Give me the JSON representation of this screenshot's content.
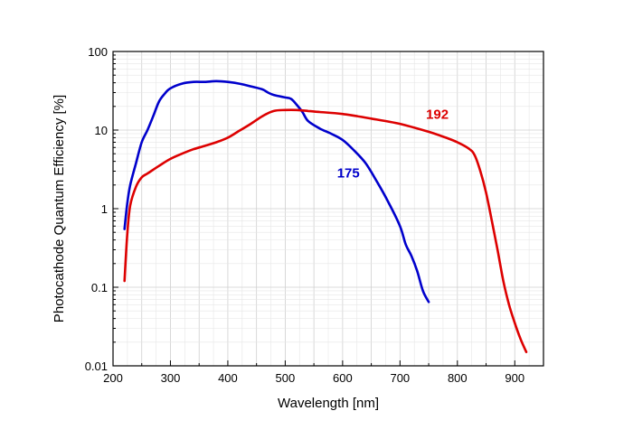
{
  "chart_data": {
    "type": "line",
    "xlabel": "Wavelength [nm]",
    "ylabel": "Photocathode Quantum Efficiency [%]",
    "xlim": [
      200,
      950
    ],
    "ylim": [
      0.01,
      100
    ],
    "yscale": "log",
    "grid": true,
    "x_ticks": [
      200,
      300,
      400,
      500,
      600,
      700,
      800,
      900
    ],
    "y_ticks": [
      0.01,
      0.1,
      1,
      10,
      100
    ],
    "x_tick_labels": [
      "200",
      "300",
      "400",
      "500",
      "600",
      "700",
      "800",
      "900"
    ],
    "y_tick_labels": [
      "0.01",
      "0.1",
      "1",
      "10",
      "100"
    ],
    "series": [
      {
        "name": "175",
        "color": "#0000cc",
        "label_at": [
          610,
          2.5
        ],
        "x": [
          220,
          225,
          230,
          240,
          250,
          260,
          270,
          280,
          290,
          300,
          320,
          340,
          360,
          380,
          400,
          420,
          440,
          460,
          470,
          480,
          500,
          510,
          520,
          530,
          540,
          560,
          580,
          600,
          620,
          640,
          660,
          680,
          700,
          710,
          720,
          730,
          740,
          750
        ],
        "y": [
          0.55,
          1.2,
          2.0,
          3.8,
          7.0,
          10.0,
          15.0,
          23.0,
          29.0,
          34.0,
          39.0,
          41.0,
          41.0,
          42.0,
          41.0,
          39.0,
          36.0,
          33.0,
          30.0,
          28.0,
          26.0,
          25.0,
          21.0,
          17.0,
          13.0,
          10.5,
          9.0,
          7.5,
          5.5,
          3.8,
          2.2,
          1.2,
          0.6,
          0.35,
          0.25,
          0.16,
          0.09,
          0.065
        ]
      },
      {
        "name": "192",
        "color": "#dd0000",
        "label_at": [
          765,
          14
        ],
        "x": [
          220,
          225,
          230,
          240,
          250,
          260,
          280,
          300,
          320,
          340,
          360,
          380,
          400,
          420,
          440,
          460,
          480,
          500,
          520,
          540,
          560,
          600,
          650,
          700,
          750,
          780,
          800,
          820,
          830,
          840,
          850,
          860,
          870,
          880,
          890,
          900,
          910,
          920
        ],
        "y": [
          0.12,
          0.5,
          1.1,
          1.9,
          2.5,
          2.8,
          3.5,
          4.3,
          5.0,
          5.7,
          6.3,
          7.0,
          8.0,
          9.8,
          12.0,
          15.0,
          17.5,
          18.0,
          18.0,
          17.5,
          17.0,
          16.0,
          14.0,
          12.0,
          9.5,
          8.0,
          7.0,
          5.8,
          4.8,
          3.0,
          1.6,
          0.7,
          0.3,
          0.12,
          0.06,
          0.035,
          0.022,
          0.015
        ]
      }
    ]
  }
}
